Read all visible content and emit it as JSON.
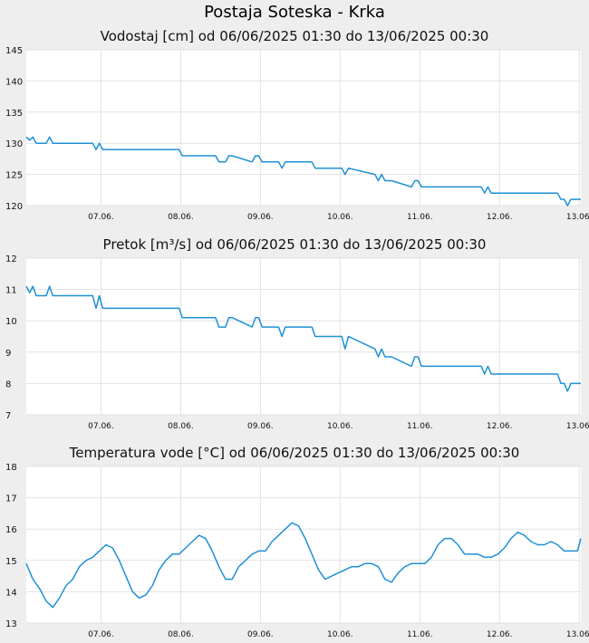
{
  "page_title": "Postaja Soteska - Krka",
  "chart_data": [
    {
      "type": "line",
      "title": "Vodostaj [cm] od 06/06/2025 01:30 do 13/06/2025 00:30",
      "categories": [
        "07.06.",
        "08.06.",
        "09.06.",
        "10.06.",
        "11.06.",
        "12.06.",
        "13.06."
      ],
      "ylim": [
        120,
        145
      ],
      "yticks": [
        120,
        125,
        130,
        135,
        140,
        145
      ],
      "xlim": [
        0,
        167
      ],
      "grid": true,
      "color": "#1e90d6",
      "series": [
        {
          "x": [
            0,
            1,
            2,
            3,
            6,
            7,
            8,
            20,
            21,
            22,
            23,
            24,
            25,
            46,
            47,
            48,
            57,
            58,
            60,
            61,
            62,
            68,
            69,
            70,
            71,
            72,
            76,
            77,
            78,
            86,
            87,
            88,
            95,
            96,
            97,
            105,
            106,
            107,
            108,
            109,
            110,
            116,
            117,
            118,
            119,
            120,
            137,
            138,
            139,
            140,
            141,
            160,
            161,
            162,
            163,
            164,
            166,
            167
          ],
          "y": [
            131,
            130.5,
            131,
            130,
            130,
            131,
            130,
            130,
            129,
            130,
            129,
            129,
            129,
            129,
            128,
            128,
            128,
            127,
            127,
            128,
            128,
            127,
            128,
            128,
            127,
            127,
            127,
            126,
            127,
            127,
            126,
            126,
            126,
            125,
            126,
            125,
            124,
            125,
            124,
            124,
            124,
            123,
            124,
            124,
            123,
            123,
            123,
            122,
            123,
            122,
            122,
            122,
            121,
            121,
            120,
            121,
            121,
            121
          ]
        }
      ]
    },
    {
      "type": "line",
      "title": "Pretok [m³/s] od 06/06/2025 01:30 do 13/06/2025 00:30",
      "categories": [
        "07.06.",
        "08.06.",
        "09.06.",
        "10.06.",
        "11.06.",
        "12.06.",
        "13.06."
      ],
      "ylim": [
        7,
        12
      ],
      "yticks": [
        7,
        8,
        9,
        10,
        11,
        12
      ],
      "xlim": [
        0,
        167
      ],
      "grid": true,
      "color": "#1e90d6",
      "series": [
        {
          "x": [
            0,
            1,
            2,
            3,
            6,
            7,
            8,
            20,
            21,
            22,
            23,
            24,
            25,
            46,
            47,
            48,
            57,
            58,
            60,
            61,
            62,
            68,
            69,
            70,
            71,
            72,
            76,
            77,
            78,
            86,
            87,
            88,
            95,
            96,
            97,
            105,
            106,
            107,
            108,
            109,
            110,
            116,
            117,
            118,
            119,
            120,
            137,
            138,
            139,
            140,
            141,
            160,
            161,
            162,
            163,
            164,
            166,
            167
          ],
          "y": [
            11.1,
            10.9,
            11.1,
            10.8,
            10.8,
            11.1,
            10.8,
            10.8,
            10.4,
            10.8,
            10.4,
            10.4,
            10.4,
            10.4,
            10.1,
            10.1,
            10.1,
            9.8,
            9.8,
            10.1,
            10.1,
            9.8,
            10.1,
            10.1,
            9.8,
            9.8,
            9.8,
            9.5,
            9.8,
            9.8,
            9.5,
            9.5,
            9.5,
            9.1,
            9.5,
            9.1,
            8.85,
            9.1,
            8.85,
            8.85,
            8.85,
            8.55,
            8.85,
            8.85,
            8.55,
            8.55,
            8.55,
            8.3,
            8.55,
            8.3,
            8.3,
            8.3,
            8.0,
            8.0,
            7.75,
            8.0,
            8.0,
            8.0
          ]
        }
      ]
    },
    {
      "type": "line",
      "title": "Temperatura vode [°C] od 06/06/2025 01:30 do 13/06/2025 00:30",
      "categories": [
        "07.06.",
        "08.06.",
        "09.06.",
        "10.06.",
        "11.06.",
        "12.06.",
        "13.06."
      ],
      "ylim": [
        13,
        18
      ],
      "yticks": [
        13,
        14,
        15,
        16,
        17,
        18
      ],
      "xlim": [
        0,
        167
      ],
      "grid": true,
      "color": "#1e90d6",
      "series": [
        {
          "x": [
            0,
            2,
            4,
            6,
            8,
            10,
            12,
            14,
            16,
            18,
            20,
            22,
            24,
            26,
            28,
            30,
            32,
            34,
            36,
            38,
            40,
            42,
            44,
            46,
            48,
            50,
            52,
            54,
            56,
            58,
            60,
            62,
            64,
            66,
            68,
            70,
            72,
            74,
            76,
            78,
            80,
            82,
            84,
            86,
            88,
            90,
            92,
            94,
            96,
            98,
            100,
            102,
            104,
            106,
            108,
            110,
            112,
            114,
            116,
            118,
            120,
            122,
            124,
            126,
            128,
            130,
            132,
            134,
            136,
            138,
            140,
            142,
            144,
            146,
            148,
            150,
            152,
            154,
            156,
            158,
            160,
            162,
            164,
            166,
            167
          ],
          "y": [
            14.9,
            14.4,
            14.1,
            13.7,
            13.5,
            13.8,
            14.2,
            14.4,
            14.8,
            15.0,
            15.1,
            15.3,
            15.5,
            15.4,
            15.0,
            14.5,
            14.0,
            13.8,
            13.9,
            14.2,
            14.7,
            15.0,
            15.2,
            15.2,
            15.4,
            15.6,
            15.8,
            15.7,
            15.3,
            14.8,
            14.4,
            14.4,
            14.8,
            15.0,
            15.2,
            15.3,
            15.3,
            15.6,
            15.8,
            16.0,
            16.2,
            16.1,
            15.7,
            15.2,
            14.7,
            14.4,
            14.5,
            14.6,
            14.7,
            14.8,
            14.8,
            14.9,
            14.9,
            14.8,
            14.4,
            14.3,
            14.6,
            14.8,
            14.9,
            14.9,
            14.9,
            15.1,
            15.5,
            15.7,
            15.7,
            15.5,
            15.2,
            15.2,
            15.2,
            15.1,
            15.1,
            15.2,
            15.4,
            15.7,
            15.9,
            15.8,
            15.6,
            15.5,
            15.5,
            15.6,
            15.5,
            15.3,
            15.3,
            15.3,
            15.7
          ]
        }
      ]
    }
  ]
}
